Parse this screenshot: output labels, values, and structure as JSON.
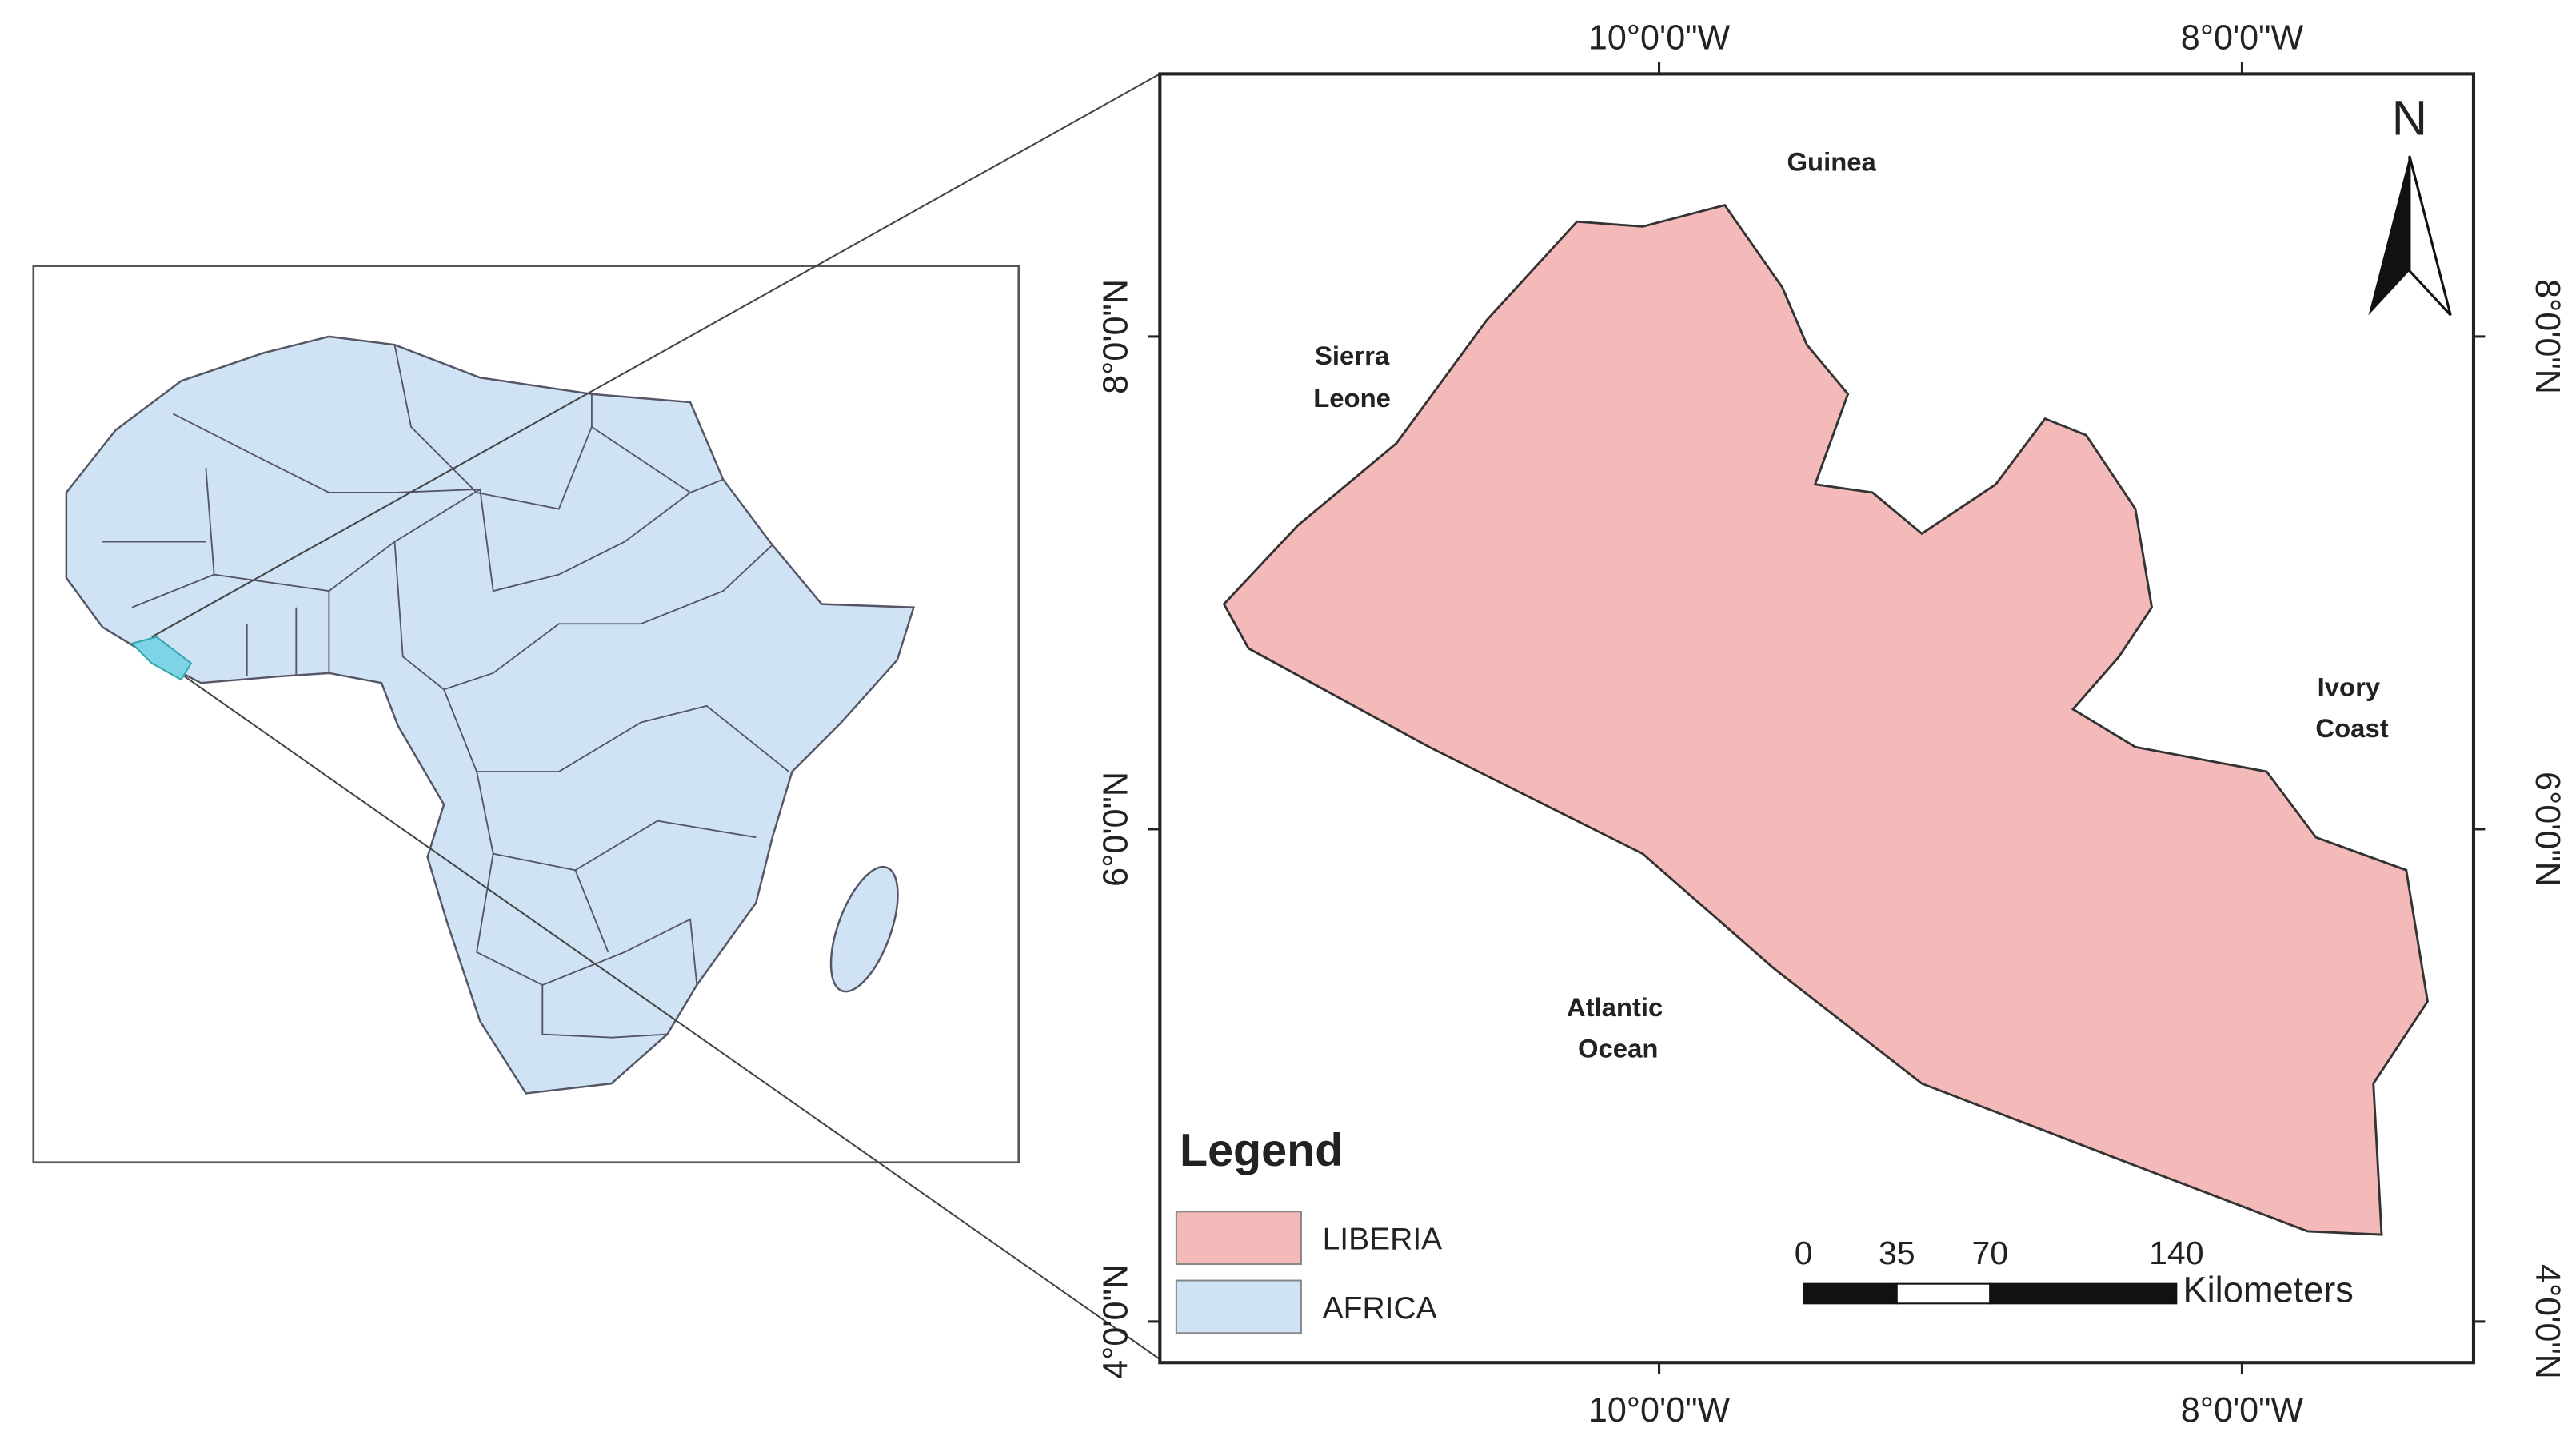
{
  "map": {
    "north": "N",
    "places": [
      {
        "lines": [
          "Guinea"
        ]
      },
      {
        "lines": [
          "Sierra",
          "Leone"
        ]
      },
      {
        "lines": [
          "Ivory",
          "Coast"
        ]
      },
      {
        "lines": [
          "Atlantic",
          "Ocean"
        ]
      }
    ],
    "longitude_labels": [
      "10°0'0\"W",
      "8°0'0\"W"
    ],
    "latitude_labels": [
      "8°0'0\"N",
      "6°0'0\"N",
      "4°0'0\"N"
    ],
    "legend": {
      "title": "Legend",
      "items": [
        {
          "label": "LIBERIA",
          "color": "#f4b9b9"
        },
        {
          "label": "AFRICA",
          "color": "#cfe3f4"
        }
      ]
    },
    "scale_bar": {
      "ticks": [
        0,
        35,
        70,
        140
      ],
      "unit": "Kilometers"
    }
  }
}
